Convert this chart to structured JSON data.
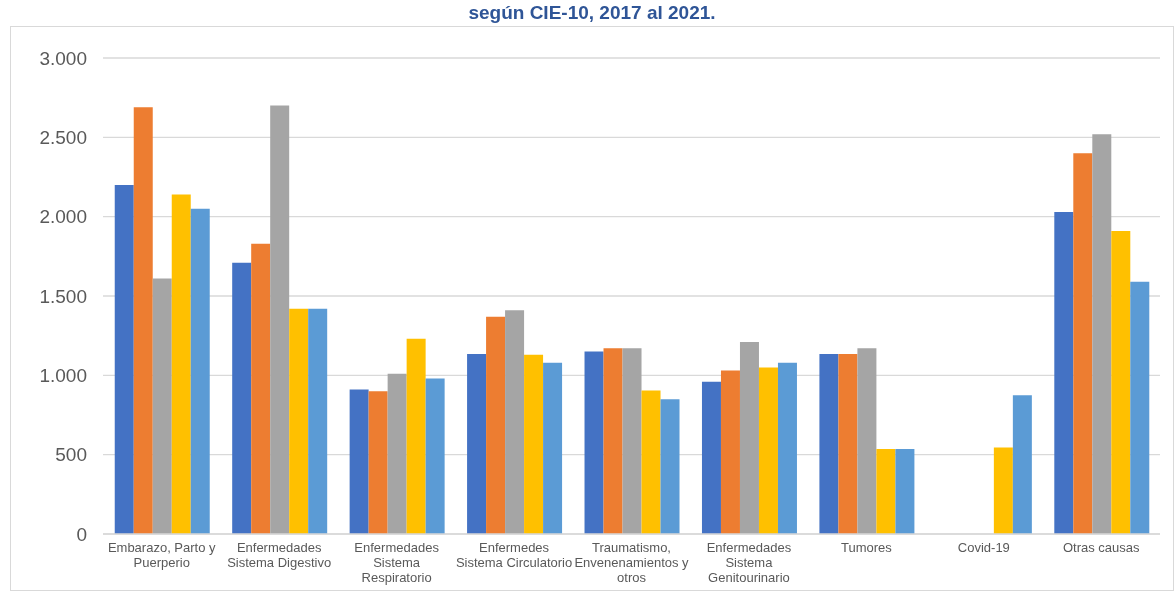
{
  "chart_data": {
    "type": "bar",
    "title": "según CIE-10, 2017 al 2021.",
    "categories": [
      "Embarazo, Parto y Puerperio",
      "Enfermedades Sistema Digestivo",
      "Enfermedades Sistema Respiratorio",
      "Enfermedes Sistema Circulatorio",
      "Traumatismo, Envenenamientos y otros",
      "Enfermedades Sistema Genitourinario",
      "Tumores",
      "Covid-19",
      "Otras causas"
    ],
    "series": [
      {
        "color": "#4472c4",
        "values": [
          2200,
          1710,
          910,
          1135,
          1150,
          960,
          1135,
          null,
          2030
        ]
      },
      {
        "color": "#ed7d31",
        "values": [
          2690,
          1830,
          900,
          1370,
          1170,
          1030,
          1135,
          null,
          2400
        ]
      },
      {
        "color": "#a5a5a5",
        "values": [
          1610,
          2700,
          1010,
          1410,
          1170,
          1210,
          1170,
          null,
          2520
        ]
      },
      {
        "color": "#ffc000",
        "values": [
          2140,
          1420,
          1230,
          1130,
          905,
          1050,
          535,
          545,
          1910
        ]
      },
      {
        "color": "#5b9bd5",
        "values": [
          2050,
          1420,
          980,
          1080,
          850,
          1080,
          535,
          875,
          1590
        ]
      }
    ],
    "ylim": [
      0,
      3000
    ],
    "yticks": [
      0,
      500,
      {
        "value": 1000,
        "label": "1.000"
      },
      {
        "value": 1500,
        "label": "1.500"
      },
      {
        "value": 2000,
        "label": "2.000"
      },
      {
        "value": 2500,
        "label": "2.500"
      },
      {
        "value": 3000,
        "label": "3.000"
      }
    ],
    "grid": "y"
  }
}
